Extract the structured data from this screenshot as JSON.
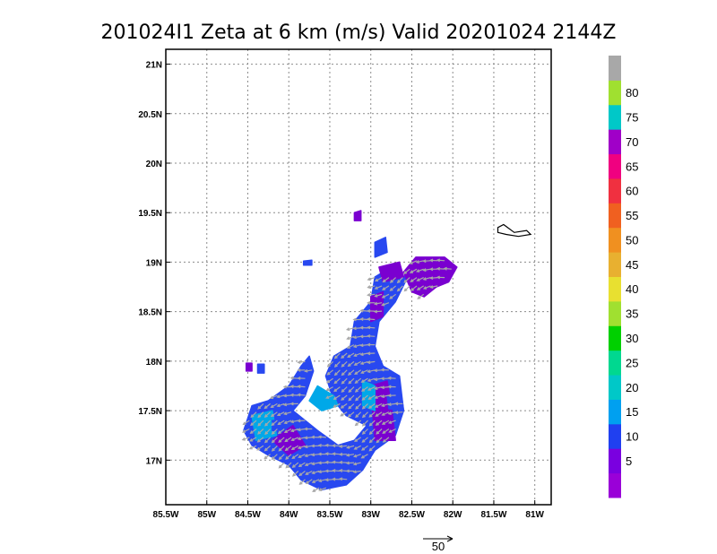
{
  "chart_data": {
    "type": "heatmap",
    "title": "201024I1 Zeta at 6 km (m/s) Valid 20201024 2144Z",
    "xlim": [
      -85.5,
      -80.8
    ],
    "ylim": [
      16.55,
      21.15
    ],
    "x_ticks": [
      {
        "value": -85.5,
        "label": "85.5W"
      },
      {
        "value": -85,
        "label": "85W"
      },
      {
        "value": -84.5,
        "label": "84.5W"
      },
      {
        "value": -84,
        "label": "84W"
      },
      {
        "value": -83.5,
        "label": "83.5W"
      },
      {
        "value": -83,
        "label": "83W"
      },
      {
        "value": -82.5,
        "label": "82.5W"
      },
      {
        "value": -82,
        "label": "82W"
      },
      {
        "value": -81.5,
        "label": "81.5W"
      },
      {
        "value": -81,
        "label": "81W"
      }
    ],
    "y_ticks": [
      {
        "value": 17,
        "label": "17N"
      },
      {
        "value": 17.5,
        "label": "17.5N"
      },
      {
        "value": 18,
        "label": "18N"
      },
      {
        "value": 18.5,
        "label": "18.5N"
      },
      {
        "value": 19,
        "label": "19N"
      },
      {
        "value": 19.5,
        "label": "19.5N"
      },
      {
        "value": 20,
        "label": "20N"
      },
      {
        "value": 20.5,
        "label": "20.5N"
      },
      {
        "value": 21,
        "label": "21N"
      }
    ],
    "grid": true,
    "colorbar": {
      "bins": [
        {
          "min": 0,
          "max": 5,
          "color": "#9a00d8",
          "label": ""
        },
        {
          "min": 5,
          "max": 10,
          "color": "#7a00e0",
          "label": "5"
        },
        {
          "min": 10,
          "max": 15,
          "color": "#2040f0",
          "label": "10"
        },
        {
          "min": 15,
          "max": 20,
          "color": "#00a0f0",
          "label": "15"
        },
        {
          "min": 20,
          "max": 25,
          "color": "#00c8c8",
          "label": "20"
        },
        {
          "min": 25,
          "max": 30,
          "color": "#00d890",
          "label": "25"
        },
        {
          "min": 30,
          "max": 35,
          "color": "#00d000",
          "label": "30"
        },
        {
          "min": 35,
          "max": 40,
          "color": "#a0e030",
          "label": "35"
        },
        {
          "min": 40,
          "max": 45,
          "color": "#e8e030",
          "label": "40"
        },
        {
          "min": 45,
          "max": 50,
          "color": "#e8b030",
          "label": "45"
        },
        {
          "min": 50,
          "max": 55,
          "color": "#f09020",
          "label": "50"
        },
        {
          "min": 55,
          "max": 60,
          "color": "#f06020",
          "label": "55"
        },
        {
          "min": 60,
          "max": 65,
          "color": "#f03040",
          "label": "60"
        },
        {
          "min": 65,
          "max": 70,
          "color": "#f00080",
          "label": "65"
        },
        {
          "min": 70,
          "max": 75,
          "color": "#a000c8",
          "label": "70"
        },
        {
          "min": 75,
          "max": 80,
          "color": "#00c8c8",
          "label": "75"
        },
        {
          "min": 80,
          "max": 85,
          "color": "#a0e030",
          "label": "80"
        },
        {
          "min": 85,
          "max": 90,
          "color": "#a8a8a8",
          "label": ""
        }
      ]
    },
    "reference_vector": {
      "value": 50,
      "label": "50"
    },
    "field_colors": {
      "low": "#7a00d0",
      "main": "#2848f0",
      "mid": "#00a8e8",
      "vector": "#a8a8a8"
    },
    "echo_regions": [
      {
        "name": "main-band",
        "level": 10,
        "polygon": [
          [
            -84.55,
            17.3
          ],
          [
            -84.45,
            17.55
          ],
          [
            -84.25,
            17.6
          ],
          [
            -84.0,
            17.75
          ],
          [
            -83.85,
            17.95
          ],
          [
            -83.75,
            18.05
          ],
          [
            -83.7,
            17.9
          ],
          [
            -83.8,
            17.65
          ],
          [
            -83.95,
            17.5
          ],
          [
            -83.65,
            17.3
          ],
          [
            -83.4,
            17.15
          ],
          [
            -83.2,
            17.2
          ],
          [
            -83.05,
            17.35
          ],
          [
            -83.3,
            17.45
          ],
          [
            -83.45,
            17.6
          ],
          [
            -83.55,
            17.85
          ],
          [
            -83.45,
            18.05
          ],
          [
            -83.25,
            18.15
          ],
          [
            -83.2,
            18.4
          ],
          [
            -83.0,
            18.6
          ],
          [
            -82.95,
            18.85
          ],
          [
            -82.85,
            18.9
          ],
          [
            -82.55,
            18.85
          ],
          [
            -82.7,
            18.6
          ],
          [
            -82.9,
            18.4
          ],
          [
            -82.95,
            18.15
          ],
          [
            -82.85,
            17.95
          ],
          [
            -82.65,
            17.85
          ],
          [
            -82.6,
            17.5
          ],
          [
            -82.7,
            17.25
          ],
          [
            -82.95,
            17.1
          ],
          [
            -83.1,
            16.9
          ],
          [
            -83.3,
            16.75
          ],
          [
            -83.6,
            16.7
          ],
          [
            -83.85,
            16.8
          ],
          [
            -84.0,
            16.95
          ],
          [
            -84.25,
            17.05
          ],
          [
            -84.45,
            17.15
          ]
        ]
      },
      {
        "name": "north-cluster",
        "level": 5,
        "polygon": [
          [
            -82.6,
            18.9
          ],
          [
            -82.45,
            19.05
          ],
          [
            -82.1,
            19.05
          ],
          [
            -81.95,
            18.95
          ],
          [
            -82.05,
            18.8
          ],
          [
            -82.2,
            18.75
          ],
          [
            -82.35,
            18.65
          ],
          [
            -82.5,
            18.7
          ]
        ]
      },
      {
        "name": "east-block",
        "level": 5,
        "polygon": [
          [
            -83.0,
            17.75
          ],
          [
            -82.8,
            17.8
          ],
          [
            -82.75,
            17.55
          ],
          [
            -82.7,
            17.2
          ],
          [
            -82.95,
            17.2
          ]
        ]
      },
      {
        "name": "south-west-patch",
        "level": 5,
        "polygon": [
          [
            -84.2,
            17.2
          ],
          [
            -83.95,
            17.35
          ],
          [
            -83.8,
            17.15
          ],
          [
            -84.0,
            17.05
          ]
        ]
      },
      {
        "name": "mid-patch",
        "level": 5,
        "polygon": [
          [
            -83.0,
            18.65
          ],
          [
            -82.85,
            18.7
          ],
          [
            -82.85,
            18.45
          ],
          [
            -83.0,
            18.4
          ]
        ]
      },
      {
        "name": "north-top-patch",
        "level": 5,
        "polygon": [
          [
            -82.9,
            18.95
          ],
          [
            -82.65,
            19.0
          ],
          [
            -82.6,
            18.85
          ],
          [
            -82.85,
            18.8
          ]
        ]
      },
      {
        "name": "inner-cyan-west",
        "level": 15,
        "polygon": [
          [
            -84.45,
            17.45
          ],
          [
            -84.2,
            17.5
          ],
          [
            -84.15,
            17.25
          ],
          [
            -84.4,
            17.2
          ]
        ]
      },
      {
        "name": "inner-cyan-mid",
        "level": 15,
        "polygon": [
          [
            -83.65,
            17.75
          ],
          [
            -83.45,
            17.65
          ],
          [
            -83.4,
            17.55
          ],
          [
            -83.6,
            17.5
          ],
          [
            -83.75,
            17.6
          ]
        ]
      },
      {
        "name": "inner-cyan-east",
        "level": 15,
        "polygon": [
          [
            -83.1,
            17.8
          ],
          [
            -82.95,
            17.75
          ],
          [
            -82.95,
            17.5
          ],
          [
            -83.1,
            17.55
          ]
        ]
      },
      {
        "name": "islet-1",
        "level": 10,
        "polygon": [
          [
            -82.95,
            19.2
          ],
          [
            -82.82,
            19.25
          ],
          [
            -82.8,
            19.1
          ],
          [
            -82.95,
            19.05
          ]
        ]
      },
      {
        "name": "islet-2",
        "level": 5,
        "polygon": [
          [
            -83.2,
            19.5
          ],
          [
            -83.12,
            19.52
          ],
          [
            -83.12,
            19.42
          ],
          [
            -83.2,
            19.42
          ]
        ]
      },
      {
        "name": "islet-3",
        "level": 10,
        "polygon": [
          [
            -83.82,
            19.01
          ],
          [
            -83.72,
            19.02
          ],
          [
            -83.72,
            18.97
          ],
          [
            -83.82,
            18.97
          ]
        ]
      },
      {
        "name": "islet-4",
        "level": 5,
        "polygon": [
          [
            -84.52,
            17.98
          ],
          [
            -84.45,
            17.98
          ],
          [
            -84.45,
            17.9
          ],
          [
            -84.52,
            17.9
          ]
        ]
      },
      {
        "name": "islet-5",
        "level": 10,
        "polygon": [
          [
            -84.38,
            17.97
          ],
          [
            -84.3,
            17.97
          ],
          [
            -84.3,
            17.88
          ],
          [
            -84.38,
            17.88
          ]
        ]
      },
      {
        "name": "islet-6",
        "level": 10,
        "polygon": [
          [
            -84.2,
            17.4
          ],
          [
            -84.08,
            17.4
          ],
          [
            -84.08,
            17.3
          ],
          [
            -84.2,
            17.3
          ]
        ]
      },
      {
        "name": "islet-7",
        "level": 10,
        "polygon": [
          [
            -82.8,
            17.65
          ],
          [
            -82.62,
            17.62
          ],
          [
            -82.6,
            17.5
          ],
          [
            -82.78,
            17.52
          ]
        ]
      }
    ],
    "coastline": [
      [
        -81.45,
        19.35
      ],
      [
        -81.38,
        19.38
      ],
      [
        -81.25,
        19.3
      ],
      [
        -81.1,
        19.32
      ],
      [
        -81.05,
        19.28
      ],
      [
        -81.2,
        19.26
      ],
      [
        -81.35,
        19.28
      ],
      [
        -81.45,
        19.3
      ]
    ]
  }
}
